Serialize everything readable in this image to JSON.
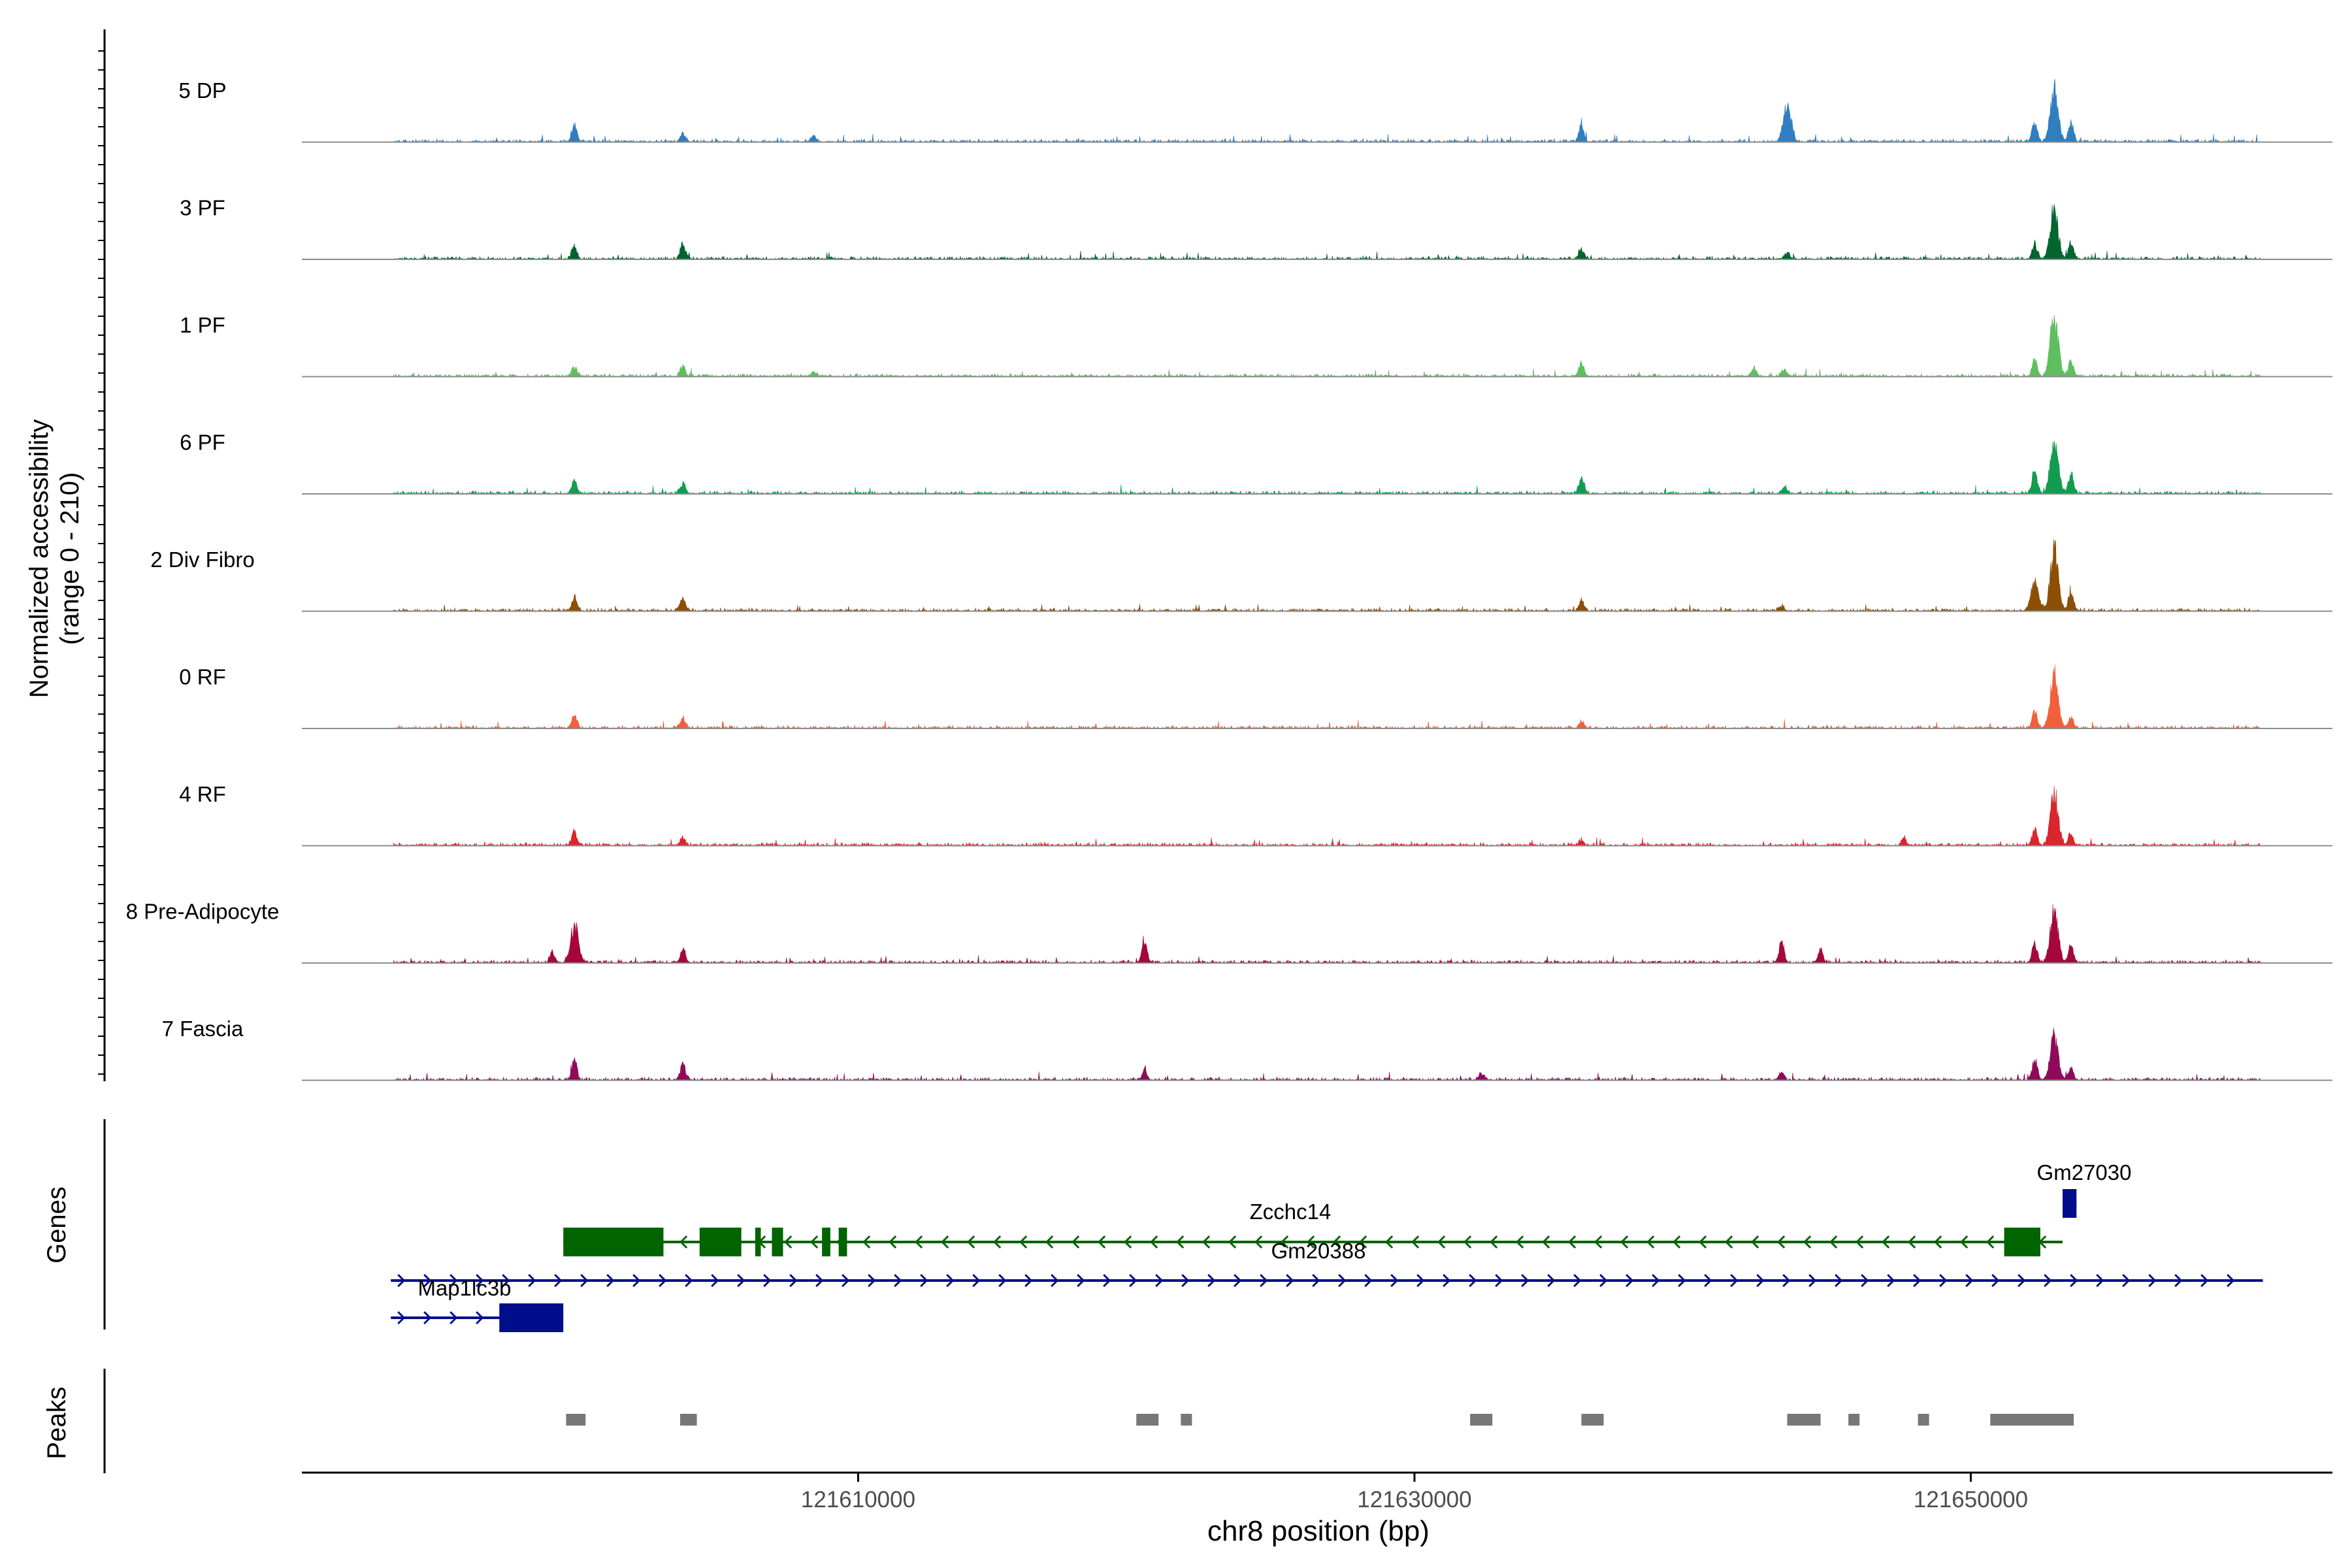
{
  "chart_data": {
    "type": "area",
    "title": "",
    "xlabel": "chr8 position (bp)",
    "ylabel_line1": "Normalized accessibility",
    "ylabel_line2": "(range 0 - 210)",
    "ylim": [
      0,
      210
    ],
    "xlim": [
      121590000,
      121663000
    ],
    "x_ticks": [
      {
        "value": 121610000,
        "label": "121610000"
      },
      {
        "value": 121630000,
        "label": "121630000"
      },
      {
        "value": 121650000,
        "label": "121650000"
      }
    ],
    "colors": {
      "5 DP": "#2f7ec0",
      "3 PF": "#00652f",
      "1 PF": "#5fbf5f",
      "6 PF": "#139b50",
      "2 Div Fibro": "#8a4f04",
      "0 RF": "#f0603a",
      "4 RF": "#d7262c",
      "8 Pre-Adipocyte": "#a6073a",
      "7 Fascia": "#900a5a",
      "gene_minus": "#006400",
      "gene_plus": "#000e8c",
      "peak": "#777777"
    },
    "coverage_window": [
      121593300,
      121660400
    ],
    "series": [
      {
        "name": "5 DP",
        "peaks": [
          [
            121599800,
            45
          ],
          [
            121603700,
            20
          ],
          [
            121608400,
            15
          ],
          [
            121636000,
            45
          ],
          [
            121643400,
            95
          ],
          [
            121652300,
            50
          ],
          [
            121653000,
            130
          ],
          [
            121653600,
            50
          ]
        ]
      },
      {
        "name": "3 PF",
        "peaks": [
          [
            121599800,
            35
          ],
          [
            121603700,
            40
          ],
          [
            121636000,
            25
          ],
          [
            121643400,
            15
          ],
          [
            121652300,
            40
          ],
          [
            121653000,
            130
          ],
          [
            121653600,
            40
          ]
        ]
      },
      {
        "name": "1 PF",
        "peaks": [
          [
            121599800,
            25
          ],
          [
            121603700,
            25
          ],
          [
            121608400,
            12
          ],
          [
            121636000,
            35
          ],
          [
            121642200,
            20
          ],
          [
            121643300,
            20
          ],
          [
            121652300,
            40
          ],
          [
            121653000,
            150
          ],
          [
            121653600,
            40
          ]
        ]
      },
      {
        "name": "6 PF",
        "peaks": [
          [
            121599800,
            30
          ],
          [
            121603700,
            25
          ],
          [
            121636000,
            40
          ],
          [
            121643300,
            18
          ],
          [
            121652300,
            60
          ],
          [
            121653000,
            130
          ],
          [
            121653600,
            50
          ]
        ]
      },
      {
        "name": "2 Div Fibro",
        "peaks": [
          [
            121599800,
            35
          ],
          [
            121603700,
            30
          ],
          [
            121636000,
            25
          ],
          [
            121643200,
            12
          ],
          [
            121652300,
            70
          ],
          [
            121653000,
            150
          ],
          [
            121653600,
            50
          ]
        ]
      },
      {
        "name": "0 RF",
        "peaks": [
          [
            121599800,
            30
          ],
          [
            121603700,
            25
          ],
          [
            121636000,
            18
          ],
          [
            121652300,
            40
          ],
          [
            121653000,
            140
          ],
          [
            121653600,
            30
          ]
        ]
      },
      {
        "name": "4 RF",
        "peaks": [
          [
            121599800,
            35
          ],
          [
            121603700,
            22
          ],
          [
            121636000,
            12
          ],
          [
            121647600,
            18
          ],
          [
            121652300,
            40
          ],
          [
            121653000,
            130
          ],
          [
            121653600,
            30
          ]
        ]
      },
      {
        "name": "8 Pre-Adipocyte",
        "peaks": [
          [
            121599800,
            95
          ],
          [
            121603700,
            35
          ],
          [
            121599000,
            25
          ],
          [
            121620300,
            60
          ],
          [
            121643200,
            50
          ],
          [
            121644600,
            30
          ],
          [
            121652300,
            50
          ],
          [
            121653000,
            130
          ],
          [
            121653600,
            40
          ]
        ]
      },
      {
        "name": "7 Fascia",
        "peaks": [
          [
            121599800,
            50
          ],
          [
            121603700,
            40
          ],
          [
            121620300,
            25
          ],
          [
            121632400,
            15
          ],
          [
            121643200,
            18
          ],
          [
            121652300,
            50
          ],
          [
            121653000,
            110
          ],
          [
            121653600,
            30
          ]
        ]
      }
    ],
    "genes_label": "Genes",
    "genes": [
      {
        "name": "Zcchc14",
        "strand": "-",
        "start": 121599400,
        "end": 121653300,
        "exons": [
          [
            121599400,
            121603000
          ],
          [
            121604300,
            121605800
          ],
          [
            121606300,
            121606500
          ],
          [
            121606900,
            121607300
          ],
          [
            121608700,
            121609000
          ],
          [
            121609300,
            121609600
          ],
          [
            121651200,
            121652500
          ]
        ]
      },
      {
        "name": "Gm20388",
        "strand": "+",
        "start": 121593200,
        "end": 121660500,
        "exons": []
      },
      {
        "name": "Map1lc3b",
        "strand": "+",
        "start": 121593200,
        "end": 121599400,
        "exons": [
          [
            121597100,
            121599400
          ]
        ]
      },
      {
        "name": "Gm27030",
        "strand": "+",
        "start": 121653300,
        "end": 121653800,
        "exons": [
          [
            121653300,
            121653800
          ]
        ]
      }
    ],
    "peaks_label": "Peaks",
    "peak_regions": [
      [
        121599500,
        121600200
      ],
      [
        121603600,
        121604200
      ],
      [
        121620000,
        121620800
      ],
      [
        121621600,
        121622000
      ],
      [
        121632000,
        121632800
      ],
      [
        121636000,
        121636800
      ],
      [
        121643400,
        121644600
      ],
      [
        121645600,
        121646000
      ],
      [
        121648100,
        121648500
      ],
      [
        121650700,
        121653700
      ]
    ]
  }
}
